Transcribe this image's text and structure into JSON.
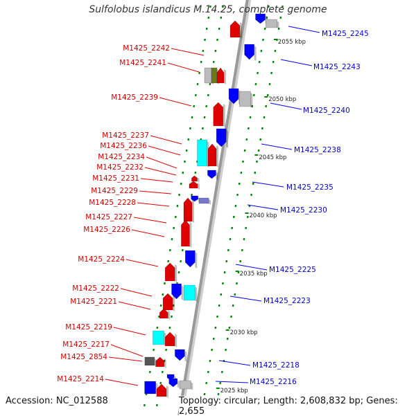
{
  "title": "Sulfolobus islandicus M.14.25, complete genome",
  "footer": {
    "accession": "Accession: NC_012588",
    "topology": "Topology: circular; Length: 2,608,832 bp; Genes: 2,655"
  },
  "scale_ticks": [
    {
      "label": "2025 kbp"
    },
    {
      "label": "2030 kbp"
    },
    {
      "label": "2035 kbp"
    },
    {
      "label": "2040 kbp"
    },
    {
      "label": "2045 kbp"
    },
    {
      "label": "2050 kbp"
    },
    {
      "label": "2055 kbp"
    }
  ],
  "genes": [
    {
      "name": "M1425_2245",
      "strand": "+"
    },
    {
      "name": "M1425_2243",
      "strand": "+"
    },
    {
      "name": "M1425_2242",
      "strand": "-"
    },
    {
      "name": "M1425_2241",
      "strand": "-"
    },
    {
      "name": "M1425_2240",
      "strand": "+"
    },
    {
      "name": "M1425_2239",
      "strand": "-"
    },
    {
      "name": "M1425_2238",
      "strand": "+"
    },
    {
      "name": "M1425_2237",
      "strand": "-"
    },
    {
      "name": "M1425_2236",
      "strand": "-"
    },
    {
      "name": "M1425_2234",
      "strand": "-"
    },
    {
      "name": "M1425_2232",
      "strand": "-"
    },
    {
      "name": "M1425_2235",
      "strand": "+"
    },
    {
      "name": "M1425_2231",
      "strand": "-"
    },
    {
      "name": "M1425_2229",
      "strand": "-"
    },
    {
      "name": "M1425_2230",
      "strand": "+"
    },
    {
      "name": "M1425_2228",
      "strand": "-"
    },
    {
      "name": "M1425_2227",
      "strand": "-"
    },
    {
      "name": "M1425_2226",
      "strand": "-"
    },
    {
      "name": "M1425_2224",
      "strand": "-"
    },
    {
      "name": "M1425_2225",
      "strand": "+"
    },
    {
      "name": "M1425_2222",
      "strand": "-"
    },
    {
      "name": "M1425_2223",
      "strand": "+"
    },
    {
      "name": "M1425_2221",
      "strand": "-"
    },
    {
      "name": "M1425_2219",
      "strand": "-"
    },
    {
      "name": "M1425_2217",
      "strand": "-"
    },
    {
      "name": "M1425_2218",
      "strand": "+"
    },
    {
      "name": "M1425_2854",
      "strand": "-"
    },
    {
      "name": "M1425_2216",
      "strand": "+"
    },
    {
      "name": "M1425_2214",
      "strand": "-"
    }
  ],
  "colors": {
    "forward": "#0000ff",
    "reverse": "#dd0000",
    "cyan": "#00ffff",
    "grey": "#bbbbbb",
    "olive": "#6b7a1f",
    "dark_grey": "#555555",
    "purple": "#7777cc",
    "backbone": "#999999",
    "dots": "#008800",
    "label_forward": "#0000cc",
    "label_reverse": "#cc0000"
  }
}
